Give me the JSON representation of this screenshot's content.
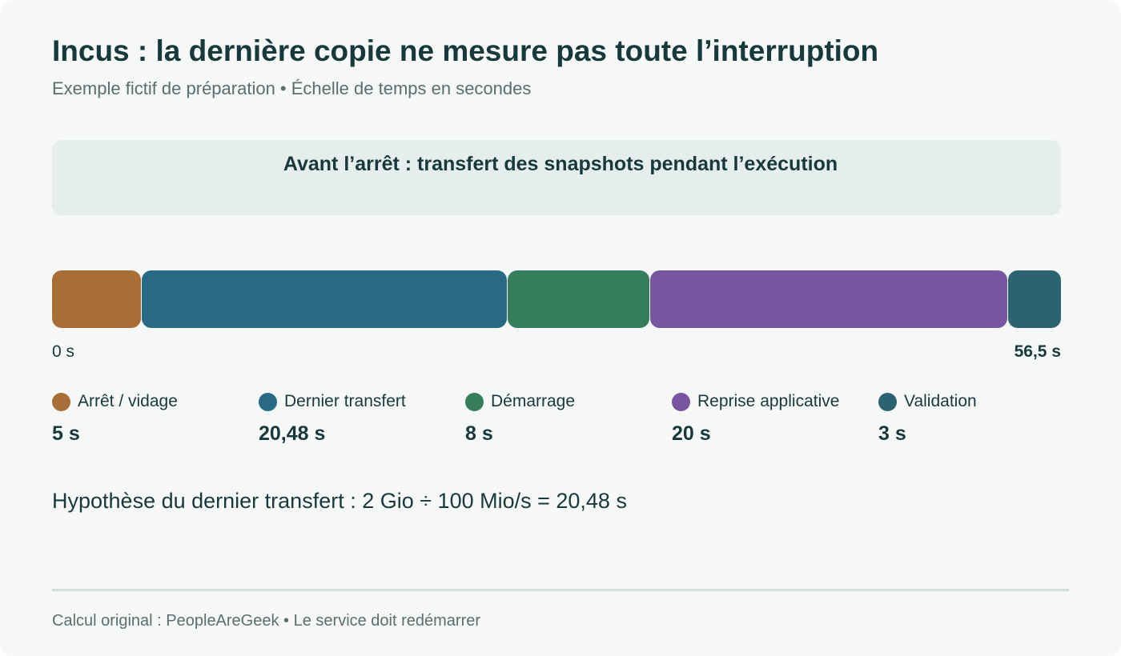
{
  "header": {
    "title": "Incus : la dernière copie ne mesure pas toute l’interruption",
    "subtitle": "Exemple fictif de préparation • Échelle de temps en secondes"
  },
  "phase": {
    "label": "Avant l’arrêt : transfert des snapshots pendant l’exécution"
  },
  "chart_data": {
    "type": "bar",
    "orientation": "horizontal-stacked",
    "unit": "s",
    "total": 56.48,
    "axis": {
      "start_label": "0 s",
      "end_label": "56,5 s"
    },
    "segments": [
      {
        "name": "Arrêt / vidage",
        "value": 5,
        "value_label": "5 s",
        "color": "#a86e36"
      },
      {
        "name": "Dernier transfert",
        "value": 20.48,
        "value_label": "20,48 s",
        "color": "#286a83"
      },
      {
        "name": "Démarrage",
        "value": 8,
        "value_label": "8 s",
        "color": "#357d5b"
      },
      {
        "name": "Reprise applicative",
        "value": 20,
        "value_label": "20 s",
        "color": "#77559f"
      },
      {
        "name": "Validation",
        "value": 3,
        "value_label": "3 s",
        "color": "#2b6470"
      }
    ],
    "legend_position": "bottom"
  },
  "note": {
    "hypothesis": "Hypothèse du dernier transfert : 2 Gio ÷ 100 Mio/s = 20,48 s"
  },
  "footer": {
    "text": "Calcul original : PeopleAreGeek • Le service doit redémarrer"
  }
}
